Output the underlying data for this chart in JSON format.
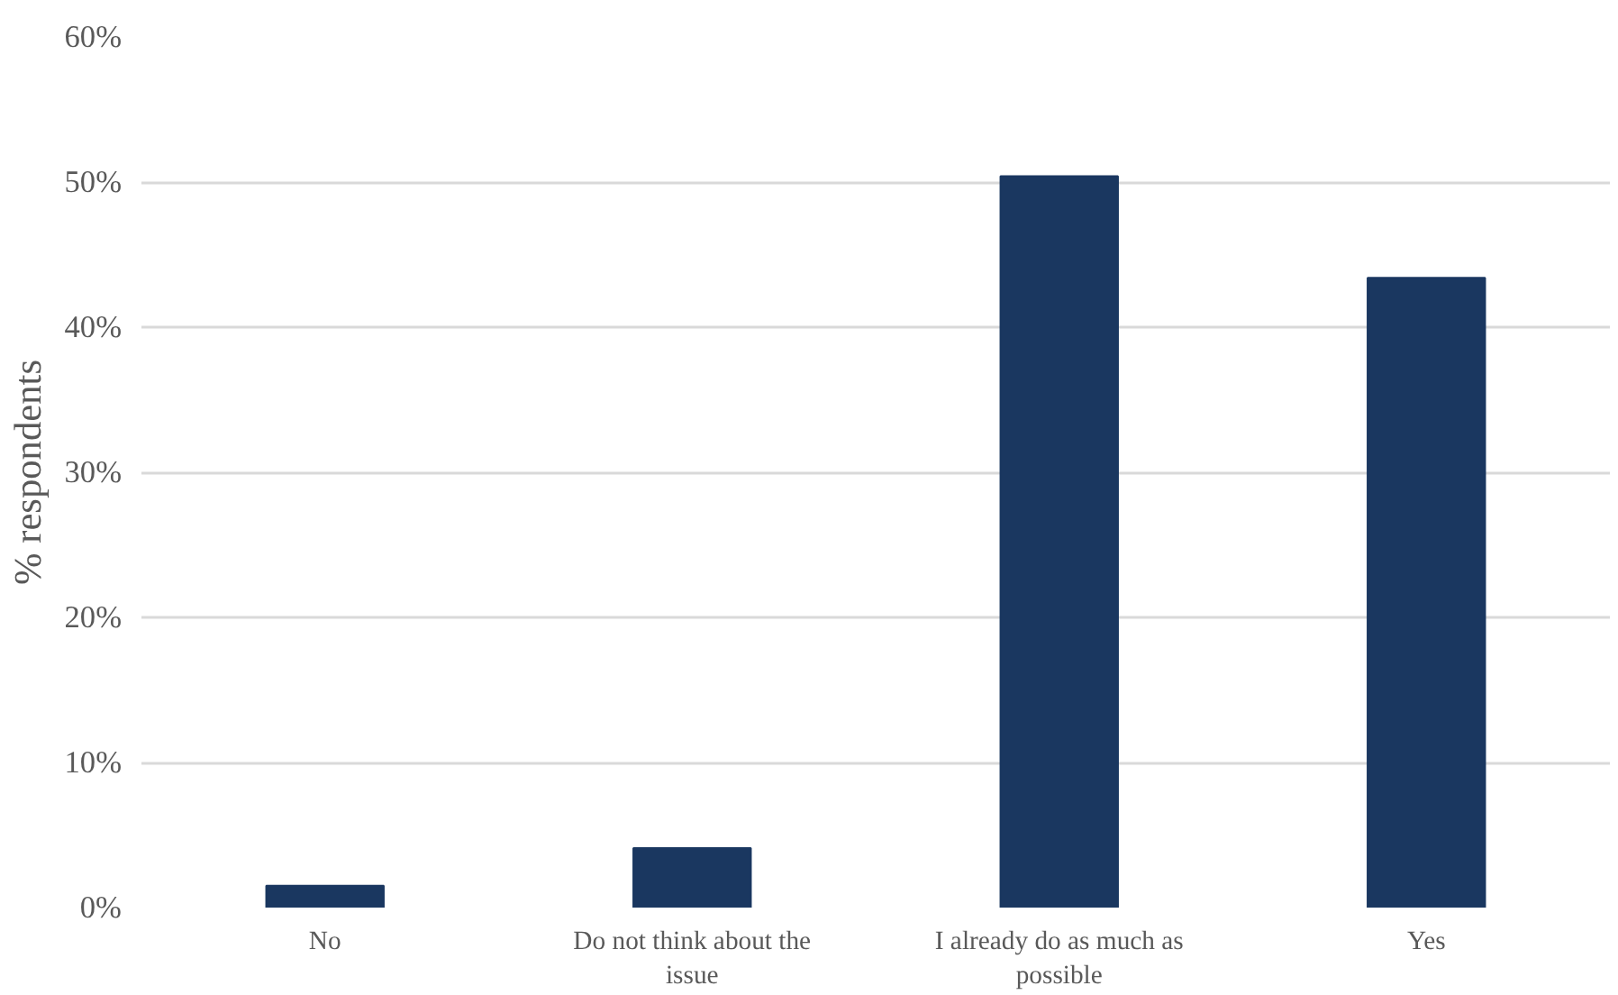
{
  "chart_data": {
    "type": "bar",
    "ylabel": "% respondents",
    "categories": [
      "No",
      "Do not think about the issue",
      "I already do as much as possible",
      "Yes"
    ],
    "values": [
      1.5,
      4.1,
      50.4,
      43.4
    ],
    "color": "#1a3760",
    "ylim": [
      0,
      60
    ],
    "yticks": [
      {
        "value": 0,
        "label": "0%"
      },
      {
        "value": 10,
        "label": "10%"
      },
      {
        "value": 20,
        "label": "20%"
      },
      {
        "value": 30,
        "label": "30%"
      },
      {
        "value": 40,
        "label": "40%"
      },
      {
        "value": 50,
        "label": "50%"
      },
      {
        "value": 60,
        "label": "60%"
      }
    ],
    "grid": "y"
  }
}
